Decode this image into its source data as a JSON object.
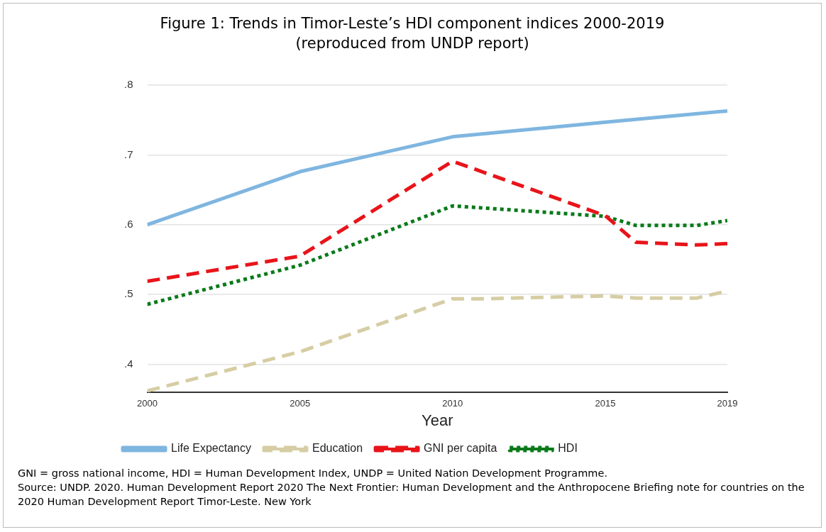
{
  "chart_data": {
    "type": "line",
    "title": "Figure 1: Trends in Timor-Leste’s HDI component indices 2000-2019",
    "subtitle": "(reproduced from UNDP report)",
    "xlabel": "Year",
    "xlim": [
      2000,
      2019
    ],
    "xticks": [
      2000,
      2005,
      2010,
      2015,
      2019
    ],
    "ylim": [
      0.36,
      0.8
    ],
    "yticks": [
      {
        "value": 0.4,
        "label": ".4"
      },
      {
        "value": 0.5,
        "label": ".5"
      },
      {
        "value": 0.6,
        "label": ".6"
      },
      {
        "value": 0.7,
        "label": ".7"
      },
      {
        "value": 0.8,
        "label": ".8"
      }
    ],
    "grid": "y",
    "legend": "bottom",
    "marker": "none",
    "series": [
      {
        "name": "Life Expectancy",
        "color": "#7fb6e0",
        "line_style": "solid",
        "x": [
          2000,
          2005,
          2010,
          2015,
          2019
        ],
        "values": [
          0.6,
          0.676,
          0.726,
          0.747,
          0.763
        ]
      },
      {
        "name": "Education",
        "color": "#d6cda4",
        "line_style": "dashed",
        "x": [
          2000,
          2005,
          2010,
          2011,
          2015,
          2016,
          2018,
          2019
        ],
        "values": [
          0.362,
          0.418,
          0.494,
          0.494,
          0.498,
          0.495,
          0.495,
          0.505
        ]
      },
      {
        "name": "GNI per capita",
        "color": "#e8141a",
        "line_style": "dashed",
        "x": [
          2000,
          2005,
          2010,
          2015,
          2016,
          2018,
          2019
        ],
        "values": [
          0.519,
          0.555,
          0.691,
          0.613,
          0.575,
          0.571,
          0.573
        ]
      },
      {
        "name": "HDI",
        "color": "#0a7a1a",
        "line_style": "dotted",
        "x": [
          2000,
          2005,
          2010,
          2015,
          2016,
          2018,
          2019
        ],
        "values": [
          0.486,
          0.542,
          0.627,
          0.612,
          0.599,
          0.599,
          0.606
        ]
      }
    ],
    "annotations": [
      "GNI = gross national income, HDI = Human Development Index, UNDP = United Nation Development Programme.",
      "Source: UNDP. 2020. Human Development Report 2020 The Next Frontier: Human Development and the Anthropocene Briefing note for countries on the 2020 Human Development Report Timor-Leste. New York"
    ]
  }
}
